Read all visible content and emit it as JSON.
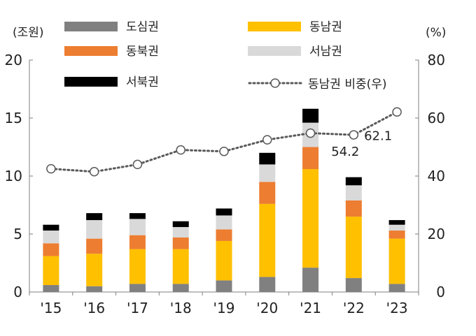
{
  "chart_data": {
    "type": "bar",
    "subtype": "stacked-bar-with-line",
    "categories": [
      "'15",
      "'16",
      "'17",
      "'18",
      "'19",
      "'20",
      "'21",
      "'22",
      "'23"
    ],
    "series": [
      {
        "name": "도심권",
        "color": "#808080",
        "axis": "left",
        "values": [
          0.6,
          0.5,
          0.7,
          0.7,
          1.0,
          1.3,
          2.1,
          1.2,
          0.7
        ]
      },
      {
        "name": "동남권",
        "color": "#FFC000",
        "axis": "left",
        "values": [
          2.5,
          2.8,
          3.0,
          3.0,
          3.4,
          6.3,
          8.5,
          5.3,
          3.9
        ]
      },
      {
        "name": "동북권",
        "color": "#ED7D31",
        "axis": "left",
        "values": [
          1.1,
          1.3,
          1.2,
          1.0,
          1.0,
          1.9,
          1.9,
          1.4,
          0.7
        ]
      },
      {
        "name": "서남권",
        "color": "#D9D9D9",
        "axis": "left",
        "values": [
          1.1,
          1.6,
          1.4,
          0.9,
          1.2,
          1.5,
          2.1,
          1.3,
          0.5
        ]
      },
      {
        "name": "서북권",
        "color": "#000000",
        "axis": "left",
        "values": [
          0.5,
          0.6,
          0.5,
          0.5,
          0.6,
          1.0,
          1.2,
          0.7,
          0.4
        ]
      }
    ],
    "line_series": {
      "name": "동남권 비중(우)",
      "axis": "right",
      "values": [
        42.5,
        41.5,
        44.0,
        49.0,
        48.5,
        52.5,
        54.8,
        54.2,
        62.1
      ],
      "labels": [
        {
          "index": 7,
          "text": "54.2"
        },
        {
          "index": 8,
          "text": "62.1"
        }
      ]
    },
    "y_left": {
      "unit": "(조원)",
      "min": 0,
      "max": 20,
      "ticks": [
        "0",
        "5",
        "10",
        "15",
        "20"
      ]
    },
    "y_right": {
      "unit": "(%)",
      "min": 0,
      "max": 80,
      "ticks": [
        "0",
        "20",
        "40",
        "60",
        "80"
      ]
    },
    "legend": {
      "placement": "top",
      "items": [
        "도심권",
        "동남권",
        "동북권",
        "서남권",
        "서북권",
        "동남권 비중(우)"
      ]
    }
  }
}
